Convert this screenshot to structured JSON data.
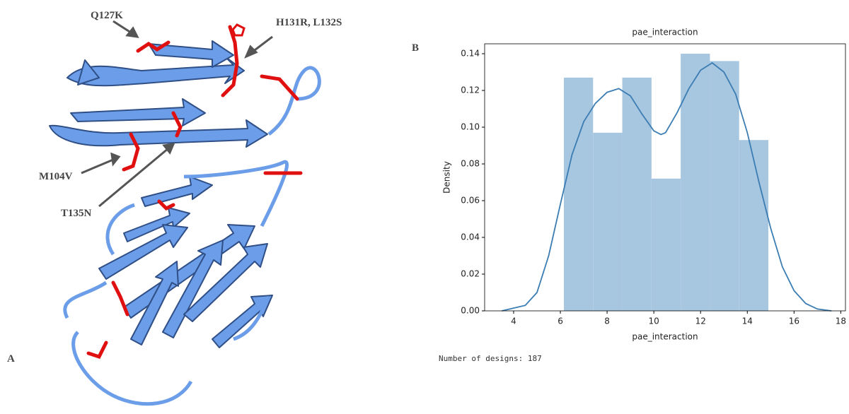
{
  "panel_labels": [
    "A",
    "B"
  ],
  "annotations": [
    "Q127K",
    "H131R, L132S",
    "M104V",
    "T135N"
  ],
  "footer": "Number of designs:  187",
  "chart_data": {
    "type": "histogram",
    "title": "pae_interaction",
    "x_label": "pae_interaction",
    "y_label": "Density",
    "bins": [
      6.15,
      7.4,
      8.65,
      9.9,
      11.15,
      12.4,
      13.65,
      14.9
    ],
    "values": [
      0.127,
      0.097,
      0.127,
      0.072,
      0.14,
      0.136,
      0.093
    ],
    "color": "#a7c6e0",
    "kde": {
      "color": "#3b7db3",
      "x": [
        3.5,
        4.5,
        5,
        5.5,
        6,
        6.5,
        7,
        7.5,
        8,
        8.5,
        9,
        9.5,
        10,
        10.3,
        10.5,
        11,
        11.5,
        12,
        12.5,
        13,
        13.5,
        14,
        14.5,
        15,
        15.5,
        16,
        16.5,
        17,
        17.6
      ],
      "values": [
        0,
        0.003,
        0.01,
        0.03,
        0.058,
        0.085,
        0.103,
        0.113,
        0.119,
        0.121,
        0.117,
        0.107,
        0.098,
        0.096,
        0.097,
        0.108,
        0.121,
        0.131,
        0.135,
        0.13,
        0.118,
        0.097,
        0.07,
        0.045,
        0.024,
        0.011,
        0.004,
        0.001,
        0
      ]
    },
    "xlim": [
      2.76,
      18.2
    ],
    "ylim": [
      0,
      0.1454
    ],
    "xticks": [
      4,
      6,
      8,
      10,
      12,
      14,
      16,
      18
    ],
    "yticks": [
      {
        "value": 0,
        "label": "0.00"
      },
      0.02,
      0.04,
      0.06,
      0.08,
      {
        "value": 0.1,
        "label": "0.10"
      },
      0.12,
      0.14
    ]
  }
}
